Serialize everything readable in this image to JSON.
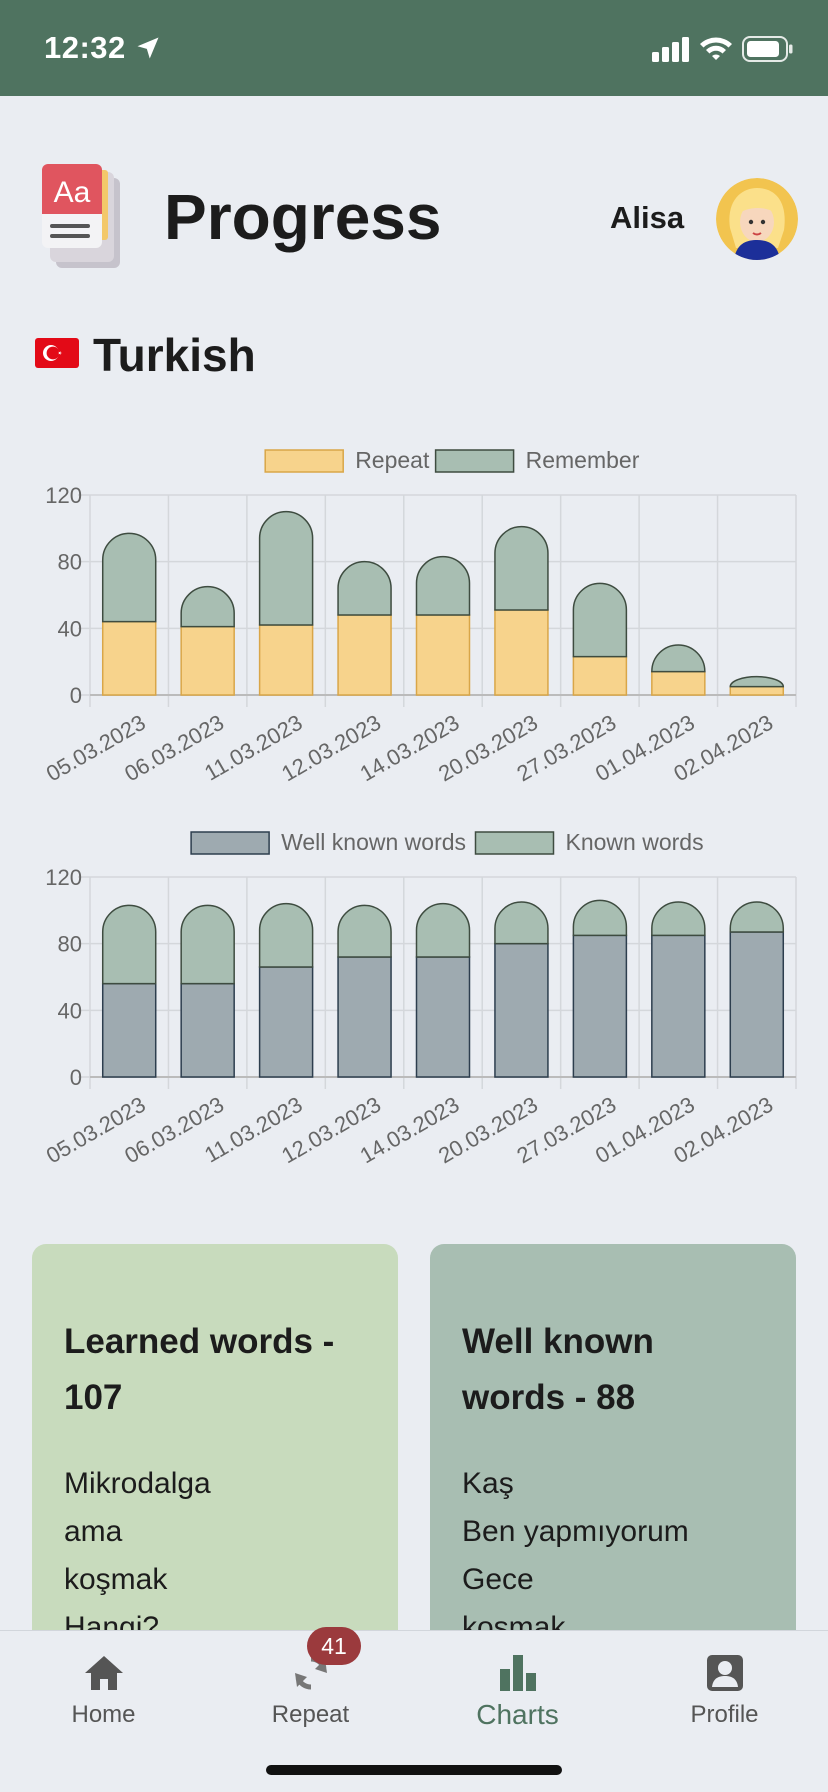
{
  "status_bar": {
    "time": "12:32"
  },
  "header": {
    "title": "Progress",
    "user_name": "Alisa"
  },
  "language": {
    "name": "Turkish"
  },
  "colors": {
    "repeat": "#f7d38c",
    "remember": "#a8beb2",
    "well_known": "#9eaab0",
    "known": "#a8beb2",
    "accent": "#4f7360",
    "badge": "#9b3a3d"
  },
  "chart_data": [
    {
      "type": "bar",
      "stacked": true,
      "categories": [
        "05.03.2023",
        "06.03.2023",
        "11.03.2023",
        "12.03.2023",
        "14.03.2023",
        "20.03.2023",
        "27.03.2023",
        "01.04.2023",
        "02.04.2023"
      ],
      "series": [
        {
          "name": "Repeat",
          "values": [
            44,
            41,
            42,
            48,
            48,
            51,
            23,
            14,
            5
          ]
        },
        {
          "name": "Remember",
          "values": [
            53,
            24,
            68,
            32,
            35,
            50,
            44,
            16,
            6
          ]
        }
      ],
      "ylim": [
        0,
        120
      ],
      "yticks": [
        0,
        40,
        80,
        120
      ],
      "legend": "top",
      "grid": true
    },
    {
      "type": "bar",
      "stacked": true,
      "categories": [
        "05.03.2023",
        "06.03.2023",
        "11.03.2023",
        "12.03.2023",
        "14.03.2023",
        "20.03.2023",
        "27.03.2023",
        "01.04.2023",
        "02.04.2023"
      ],
      "series": [
        {
          "name": "Well known words",
          "values": [
            56,
            56,
            66,
            72,
            72,
            80,
            85,
            85,
            87
          ]
        },
        {
          "name": "Known words",
          "values": [
            47,
            47,
            38,
            31,
            32,
            25,
            21,
            20,
            18
          ]
        }
      ],
      "ylim": [
        0,
        120
      ],
      "yticks": [
        0,
        40,
        80,
        120
      ],
      "legend": "top",
      "grid": true
    }
  ],
  "cards": {
    "learned": {
      "title": "Learned words - 107",
      "words": [
        "Mikrodalga",
        "ama",
        "koşmak",
        "Hangi?"
      ]
    },
    "well_known": {
      "title": "Well known words - 88",
      "words": [
        "Kaş",
        "Ben yapmıyorum",
        "Gece",
        "koşmak"
      ]
    }
  },
  "nav": {
    "home": "Home",
    "repeat": "Repeat",
    "repeat_badge": "41",
    "charts": "Charts",
    "profile": "Profile"
  },
  "icons": [
    "location-arrow-icon",
    "signal-icon",
    "wifi-icon",
    "battery-icon",
    "home-icon",
    "repeat-icon",
    "charts-icon",
    "profile-icon"
  ]
}
